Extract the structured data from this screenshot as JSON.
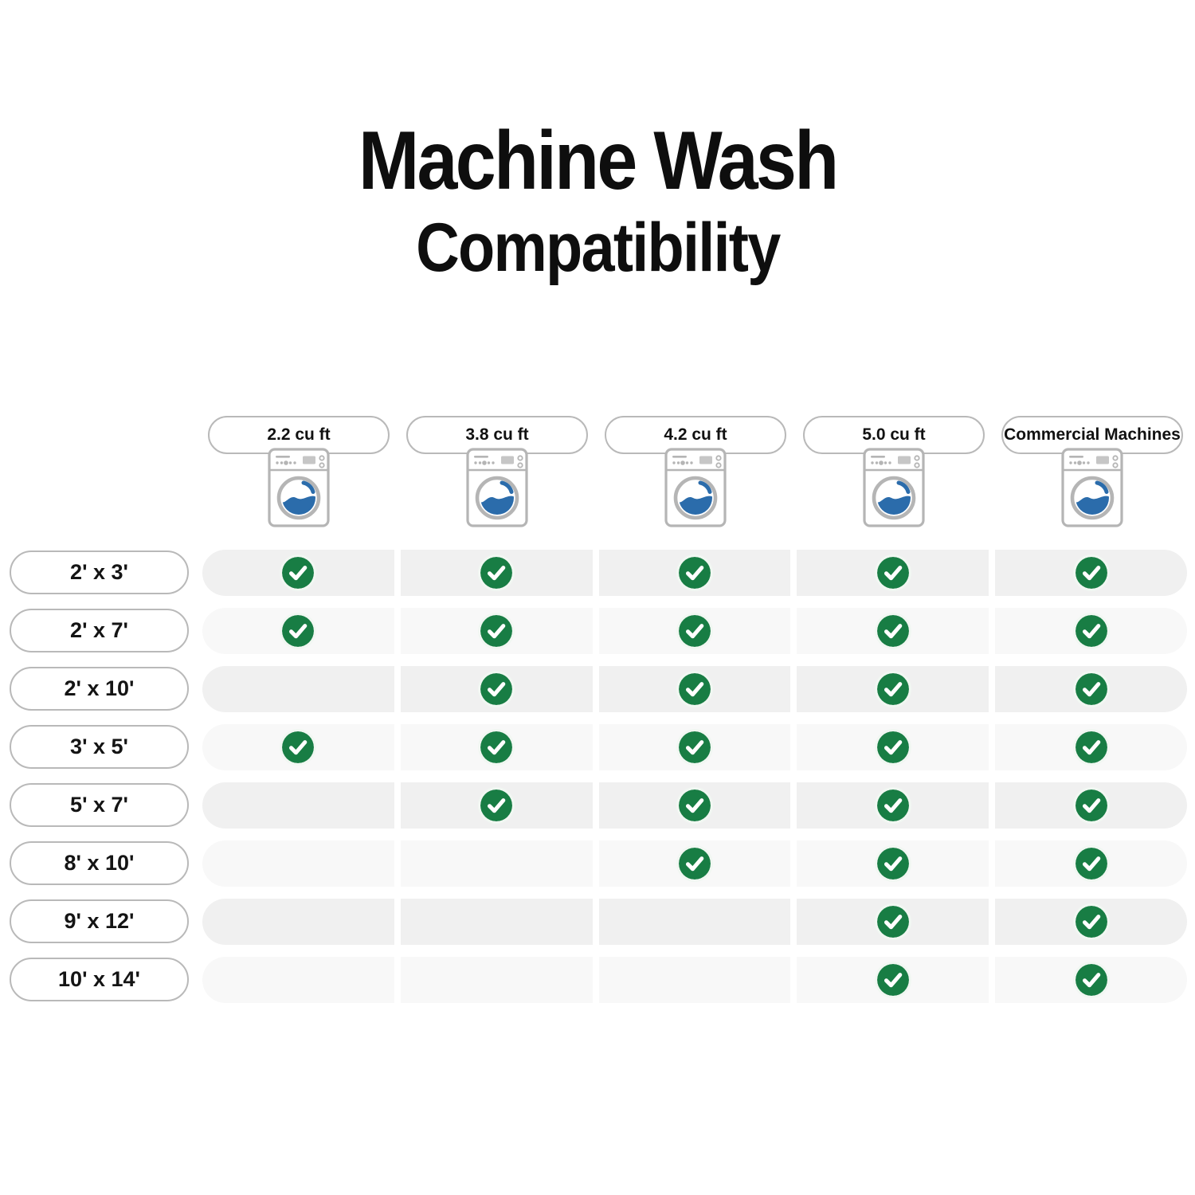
{
  "title": {
    "line1": "Machine Wash",
    "line2": "Compatibility"
  },
  "columns": [
    {
      "label": "2.2 cu ft"
    },
    {
      "label": "3.8 cu ft"
    },
    {
      "label": "4.2 cu ft"
    },
    {
      "label": "5.0 cu ft"
    },
    {
      "label": "Commercial Machines"
    }
  ],
  "rows": [
    {
      "size": "2' x 3'",
      "compatible": [
        true,
        true,
        true,
        true,
        true
      ]
    },
    {
      "size": "2' x 7'",
      "compatible": [
        true,
        true,
        true,
        true,
        true
      ]
    },
    {
      "size": "2' x 10'",
      "compatible": [
        false,
        true,
        true,
        true,
        true
      ]
    },
    {
      "size": "3' x 5'",
      "compatible": [
        true,
        true,
        true,
        true,
        true
      ]
    },
    {
      "size": "5' x 7'",
      "compatible": [
        false,
        true,
        true,
        true,
        true
      ]
    },
    {
      "size": "8' x 10'",
      "compatible": [
        false,
        false,
        true,
        true,
        true
      ]
    },
    {
      "size": "9' x 12'",
      "compatible": [
        false,
        false,
        false,
        true,
        true
      ]
    },
    {
      "size": "10' x 14'",
      "compatible": [
        false,
        false,
        false,
        true,
        true
      ]
    }
  ],
  "colors": {
    "check_green": "#187d44",
    "water_blue": "#2b6cab",
    "machine_gray": "#b5b5b5",
    "band_dark": "#f0f0f0",
    "band_light": "#f8f8f8",
    "pill_border": "#b9b9b9",
    "text": "#0e0e0e"
  },
  "icons": {
    "check": "check-icon",
    "machine": "washing-machine-icon"
  },
  "chart_data": {
    "type": "table",
    "title": "Machine Wash Compatibility",
    "columns": [
      "2.2 cu ft",
      "3.8 cu ft",
      "4.2 cu ft",
      "5.0 cu ft",
      "Commercial Machines"
    ],
    "row_labels": [
      "2' x 3'",
      "2' x 7'",
      "2' x 10'",
      "3' x 5'",
      "5' x 7'",
      "8' x 10'",
      "9' x 12'",
      "10' x 14'"
    ],
    "values": [
      [
        1,
        1,
        1,
        1,
        1
      ],
      [
        1,
        1,
        1,
        1,
        1
      ],
      [
        0,
        1,
        1,
        1,
        1
      ],
      [
        1,
        1,
        1,
        1,
        1
      ],
      [
        0,
        1,
        1,
        1,
        1
      ],
      [
        0,
        0,
        1,
        1,
        1
      ],
      [
        0,
        0,
        0,
        1,
        1
      ],
      [
        0,
        0,
        0,
        1,
        1
      ]
    ],
    "value_meaning": "1 = machine washable (green checkmark), 0 = blank",
    "legend_position": "none",
    "grid": false
  }
}
